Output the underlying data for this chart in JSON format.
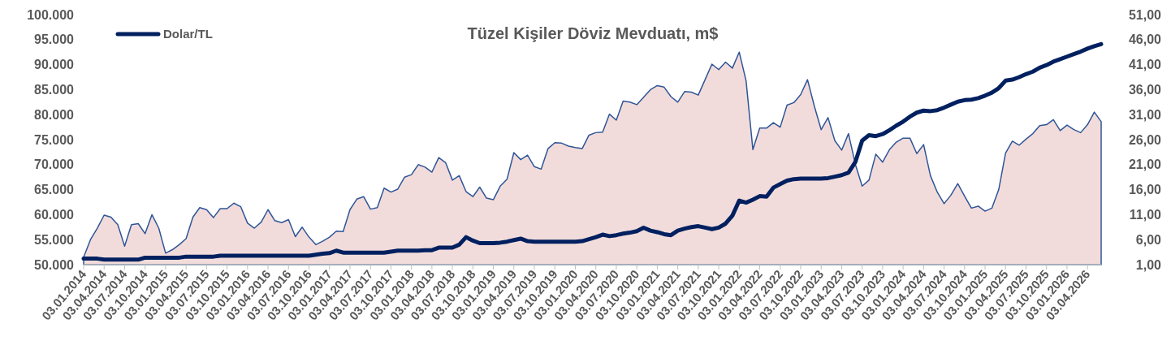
{
  "chart_data": {
    "type": "area",
    "title": "Tüzel Kişiler Döviz Mevduatı, m$",
    "categories": [
      "03.01.2014",
      null,
      null,
      "03.04.2014",
      null,
      null,
      "03.07.2014",
      null,
      null,
      "03.10.2014",
      null,
      null,
      "03.01.2015",
      null,
      null,
      "03.04.2015",
      null,
      null,
      "03.07.2015",
      null,
      null,
      "03.10.2015",
      null,
      null,
      "03.01.2016",
      null,
      null,
      "03.04.2016",
      null,
      null,
      "03.07.2016",
      null,
      null,
      "03.10.2016",
      null,
      null,
      "03.01.2017",
      null,
      null,
      "03.04.2017",
      null,
      null,
      "03.07.2017",
      null,
      null,
      "03.10.2017",
      null,
      null,
      "03.01.2018",
      null,
      null,
      "03.04.2018",
      null,
      null,
      "03.07.2018",
      null,
      null,
      "03.10.2018",
      null,
      null,
      "03.01.2019",
      null,
      null,
      "03.04.2019",
      null,
      null,
      "03.07.2019",
      null,
      null,
      "03.10.2019",
      null,
      null,
      "03.01.2020",
      null,
      null,
      "03.04.2020",
      null,
      null,
      "03.07.2020",
      null,
      null,
      "03.10.2020",
      null,
      null,
      "03.01.2021",
      null,
      null,
      "03.04.2021",
      null,
      null,
      "03.07.2021",
      null,
      null,
      "03.10.2021",
      null,
      null,
      "03.01.2022",
      null,
      null,
      "03.04.2022",
      null,
      null,
      "03.07.2022",
      null,
      null,
      "03.10.2022",
      null,
      null,
      "03.01.2023",
      null,
      null,
      "03.04.2023",
      null,
      null,
      "03.07.2023",
      null,
      null,
      "03.10.2023",
      null,
      null,
      "03.01.2024",
      null,
      null,
      "03.04.2024",
      null,
      null,
      "03.07.2024",
      null,
      null,
      "03.10.2024",
      null,
      null,
      "03.01.2025",
      null,
      null,
      "03.04.2025",
      null,
      null,
      "03.07.2025",
      null,
      null,
      "03.10.2025",
      null,
      null,
      "03.01.2026",
      null,
      null,
      "03.04.2026",
      null,
      null
    ],
    "series": [
      {
        "color": "#f2dcdb",
        "values": [
          51500,
          55000,
          57300,
          59900,
          59500,
          58000,
          53700,
          58000,
          58200,
          56200,
          60000,
          57300,
          52300,
          53000,
          54000,
          55200,
          59500,
          61400,
          61000,
          59400,
          61200,
          61200,
          62300,
          61600,
          58300,
          57300,
          58500,
          61000,
          58800,
          58400,
          59000,
          55600,
          57500,
          55500,
          54000,
          54700,
          55500,
          56700,
          56600,
          61000,
          63100,
          63600,
          61100,
          61400,
          65300,
          64500,
          65100,
          67500,
          68000,
          70000,
          69500,
          68500,
          71400,
          70400,
          66900,
          67800,
          64600,
          63600,
          65500,
          63300,
          63000,
          65700,
          67100,
          72400,
          71000,
          71900,
          69600,
          69100,
          73200,
          74400,
          74300,
          73700,
          73400,
          73200,
          75900,
          76400,
          76500,
          80100,
          78900,
          82700,
          82500,
          82000,
          83500,
          85000,
          85800,
          85500,
          83600,
          82500,
          84600,
          84500,
          83900,
          87000,
          90100,
          89000,
          90500,
          89300,
          92500,
          86800,
          73000,
          77300,
          77300,
          78400,
          77500,
          81900,
          82400,
          84000,
          87000,
          81700,
          77000,
          79400,
          74800,
          72900,
          76200,
          70100,
          65700,
          66900,
          72100,
          70500,
          73000,
          74500,
          75300,
          75300,
          72200,
          74000,
          67800,
          64500,
          62200,
          63900,
          66200,
          63700,
          61300,
          61700,
          60700,
          61300,
          65000,
          72300,
          74700,
          73900,
          75100,
          76200,
          77800,
          78000,
          79000,
          76800,
          77900,
          77000,
          76400,
          78000,
          80500,
          78600
        ]
      },
      {
        "type": "line",
        "name": "Dolar/TL",
        "color": "#002060",
        "axis": "y2",
        "values": [
          2.2,
          2.2,
          2.2,
          2.0,
          2.0,
          2.0,
          2.0,
          2.0,
          2.0,
          2.4,
          2.4,
          2.4,
          2.4,
          2.4,
          2.4,
          2.6,
          2.6,
          2.6,
          2.6,
          2.6,
          2.8,
          2.8,
          2.8,
          2.8,
          2.8,
          2.8,
          2.8,
          2.8,
          2.8,
          2.8,
          2.8,
          2.8,
          2.8,
          2.8,
          3.0,
          3.2,
          3.3,
          3.8,
          3.4,
          3.4,
          3.4,
          3.4,
          3.4,
          3.4,
          3.4,
          3.6,
          3.8,
          3.8,
          3.8,
          3.8,
          3.9,
          3.9,
          4.4,
          4.4,
          4.4,
          5.0,
          6.5,
          5.8,
          5.3,
          5.3,
          5.3,
          5.4,
          5.6,
          5.9,
          6.2,
          5.7,
          5.6,
          5.6,
          5.6,
          5.6,
          5.6,
          5.6,
          5.6,
          5.7,
          6.1,
          6.5,
          7.0,
          6.7,
          6.9,
          7.2,
          7.4,
          7.7,
          8.4,
          7.8,
          7.5,
          7.1,
          6.9,
          7.8,
          8.2,
          8.5,
          8.7,
          8.4,
          8.1,
          8.4,
          9.2,
          10.8,
          13.8,
          13.4,
          14.0,
          14.7,
          14.6,
          16.4,
          17.1,
          17.8,
          18.1,
          18.2,
          18.2,
          18.2,
          18.2,
          18.3,
          18.6,
          18.9,
          19.4,
          21.5,
          25.8,
          26.9,
          26.7,
          27.1,
          27.9,
          28.8,
          29.6,
          30.6,
          31.4,
          31.8,
          31.7,
          31.9,
          32.4,
          33.0,
          33.6,
          33.9,
          34.0,
          34.3,
          34.8,
          35.4,
          36.3,
          37.8,
          38.0,
          38.5,
          39.1,
          39.6,
          40.4,
          40.9,
          41.6,
          42.1,
          42.6,
          43.1,
          43.6,
          44.2,
          44.7,
          45.1
        ]
      }
    ],
    "ylim": [
      50000,
      100000
    ],
    "yticks": [
      {
        "value": 50000,
        "label": "50.000"
      },
      {
        "value": 55000,
        "label": "55.000"
      },
      {
        "value": 60000,
        "label": "60.000"
      },
      {
        "value": 65000,
        "label": "65.000"
      },
      {
        "value": 70000,
        "label": "70.000"
      },
      {
        "value": 75000,
        "label": "75.000"
      },
      {
        "value": 80000,
        "label": "80.000"
      },
      {
        "value": 85000,
        "label": "85.000"
      },
      {
        "value": 90000,
        "label": "90.000"
      },
      {
        "value": 95000,
        "label": "95.000"
      },
      {
        "value": 100000,
        "label": "100.000"
      }
    ],
    "y2lim": [
      1,
      51
    ],
    "y2ticks": [
      {
        "value": 1,
        "label": "1,00"
      },
      {
        "value": 6,
        "label": "6,00"
      },
      {
        "value": 11,
        "label": "11,00"
      },
      {
        "value": 16,
        "label": "16,00"
      },
      {
        "value": 21,
        "label": "21,00"
      },
      {
        "value": 26,
        "label": "26,00"
      },
      {
        "value": 31,
        "label": "31,00"
      },
      {
        "value": 36,
        "label": "36,00"
      },
      {
        "value": 41,
        "label": "41,00"
      },
      {
        "value": 46,
        "label": "46,00"
      },
      {
        "value": 51,
        "label": "51,00"
      }
    ],
    "legend": "top left"
  }
}
